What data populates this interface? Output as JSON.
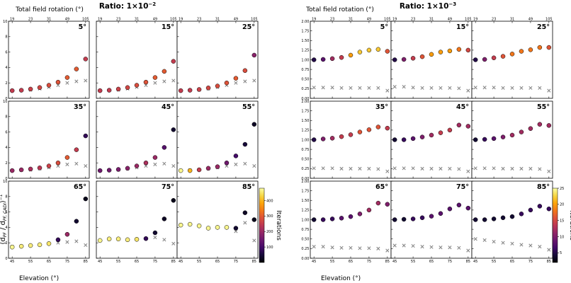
{
  "chart_data": [
    {
      "type": "scatter",
      "title": "Ratio: 1×10⁻²",
      "title_base": "Ratio: 1×10",
      "title_exp": "−2",
      "xlabel": "Elevation (°)",
      "ylabel": "(d_PF / d_PF,CADI)^-1",
      "top_xlabel": "Total field rotation (°)",
      "top_ticks": [
        "19",
        "23",
        "31",
        "49",
        "105"
      ],
      "top_ticks_last_row": [
        "19",
        "23",
        "31",
        "49",
        "105"
      ],
      "ylim": [
        0,
        10
      ],
      "yticks": [
        0,
        2,
        4,
        6,
        8,
        10
      ],
      "xticks": [
        45,
        55,
        65,
        75,
        85
      ],
      "x": [
        45,
        50,
        55,
        60,
        65,
        70,
        75,
        80,
        85
      ],
      "panels": [
        {
          "label": "5°",
          "circle_y": [
            1.0,
            1.05,
            1.2,
            1.4,
            1.7,
            2.1,
            2.7,
            3.8,
            5.1
          ],
          "circle_iter": [
            250,
            250,
            260,
            270,
            280,
            290,
            300,
            300,
            250
          ],
          "cross_y": [
            1.0,
            1.05,
            1.1,
            1.25,
            1.45,
            1.7,
            2.0,
            2.2,
            2.3
          ]
        },
        {
          "label": "15°",
          "circle_y": [
            1.0,
            1.05,
            1.2,
            1.4,
            1.7,
            2.1,
            2.7,
            3.5,
            4.8
          ],
          "circle_iter": [
            250,
            250,
            260,
            270,
            280,
            290,
            300,
            300,
            250
          ],
          "cross_y": [
            1.0,
            1.05,
            1.1,
            1.25,
            1.45,
            1.7,
            2.0,
            2.2,
            2.3
          ]
        },
        {
          "label": "25°",
          "circle_y": [
            1.0,
            1.05,
            1.15,
            1.35,
            1.6,
            2.0,
            2.6,
            3.6,
            5.6
          ],
          "circle_iter": [
            250,
            250,
            260,
            270,
            280,
            290,
            300,
            280,
            180
          ],
          "cross_y": [
            1.0,
            1.05,
            1.1,
            1.25,
            1.45,
            1.7,
            2.0,
            2.2,
            2.3
          ]
        },
        {
          "label": "35°",
          "circle_y": [
            1.0,
            1.1,
            1.2,
            1.35,
            1.6,
            2.0,
            2.7,
            3.7,
            5.5
          ],
          "circle_iter": [
            200,
            200,
            220,
            240,
            260,
            280,
            300,
            250,
            80
          ],
          "cross_y": [
            1.0,
            1.05,
            1.1,
            1.25,
            1.4,
            1.6,
            1.8,
            1.9,
            1.6
          ]
        },
        {
          "label": "45°",
          "circle_y": [
            1.0,
            1.05,
            1.15,
            1.3,
            1.6,
            2.0,
            2.7,
            4.0,
            6.3
          ],
          "circle_iter": [
            150,
            150,
            160,
            180,
            200,
            220,
            200,
            120,
            40
          ],
          "cross_y": [
            1.0,
            1.05,
            1.1,
            1.25,
            1.4,
            1.6,
            1.8,
            1.9,
            1.6
          ]
        },
        {
          "label": "55°",
          "circle_y": [
            1.0,
            1.0,
            1.1,
            1.3,
            1.5,
            2.0,
            2.9,
            4.4,
            7.0
          ],
          "circle_iter": [
            470,
            400,
            250,
            200,
            200,
            150,
            100,
            50,
            30
          ],
          "cross_y": [
            1.0,
            1.05,
            1.1,
            1.25,
            1.4,
            1.6,
            1.8,
            1.9,
            1.6
          ]
        },
        {
          "label": "65°",
          "circle_y": [
            1.45,
            1.55,
            1.65,
            1.75,
            1.9,
            2.4,
            3.1,
            4.8,
            7.7
          ],
          "circle_iter": [
            470,
            460,
            460,
            460,
            450,
            80,
            200,
            40,
            20
          ],
          "cross_y": [
            1.5,
            1.55,
            1.65,
            1.75,
            1.9,
            2.0,
            2.1,
            2.2,
            1.7
          ]
        },
        {
          "label": "75°",
          "circle_y": [
            2.3,
            2.5,
            2.5,
            2.4,
            2.45,
            2.55,
            3.3,
            5.1,
            7.5
          ],
          "circle_iter": [
            470,
            460,
            460,
            460,
            450,
            80,
            40,
            30,
            20
          ],
          "cross_y": [
            2.3,
            2.5,
            2.5,
            2.4,
            2.45,
            2.55,
            2.7,
            2.4,
            1.9
          ]
        },
        {
          "label": "85°",
          "circle_y": [
            4.3,
            4.4,
            4.2,
            3.9,
            4.0,
            4.0,
            3.9,
            5.9,
            5.0
          ],
          "circle_iter": [
            470,
            470,
            470,
            470,
            470,
            470,
            40,
            30,
            20
          ],
          "cross_y": [
            4.3,
            4.4,
            4.2,
            3.9,
            4.0,
            4.0,
            3.5,
            4.6,
            2.3
          ]
        }
      ],
      "colorbar": {
        "label": "Iterations",
        "min": 0,
        "max": 480,
        "ticks": [
          100,
          200,
          300,
          400
        ]
      }
    },
    {
      "type": "scatter",
      "title": "Ratio: 1×10⁻³",
      "title_base": "Ratio: 1×10",
      "title_exp": "−3",
      "xlabel": "Elevation (°)",
      "ylabel": "",
      "top_xlabel": "Total field rotation (°)",
      "top_ticks": [
        "19",
        "23",
        "31",
        "49",
        "105"
      ],
      "ylim": [
        0,
        2
      ],
      "yticks": [
        0,
        0.25,
        0.5,
        0.75,
        1.0,
        1.25,
        1.5,
        1.75,
        2.0
      ],
      "ytick_labels": [
        "0.00",
        "0.25",
        "0.50",
        "0.75",
        "1.00",
        "1.25",
        "1.50",
        "1.75",
        "2.00"
      ],
      "xticks": [
        45,
        55,
        65,
        75,
        85
      ],
      "x": [
        45,
        50,
        55,
        60,
        65,
        70,
        75,
        80,
        85
      ],
      "panels": [
        {
          "label": "5°",
          "circle_y": [
            1.0,
            1.01,
            1.03,
            1.06,
            1.12,
            1.2,
            1.25,
            1.27,
            1.22
          ],
          "circle_iter": [
            5,
            8,
            12,
            14,
            20,
            22,
            22,
            22,
            16
          ],
          "cross_y": [
            0.28,
            0.28,
            0.28,
            0.27,
            0.27,
            0.27,
            0.27,
            0.27,
            0.2
          ]
        },
        {
          "label": "15°",
          "circle_y": [
            1.0,
            1.01,
            1.04,
            1.08,
            1.14,
            1.2,
            1.23,
            1.27,
            1.25
          ],
          "circle_iter": [
            5,
            10,
            14,
            16,
            20,
            20,
            20,
            18,
            15
          ],
          "cross_y": [
            0.3,
            0.3,
            0.28,
            0.27,
            0.27,
            0.27,
            0.27,
            0.26,
            0.2
          ]
        },
        {
          "label": "25°",
          "circle_y": [
            1.0,
            1.01,
            1.05,
            1.09,
            1.15,
            1.22,
            1.26,
            1.32,
            1.32
          ],
          "circle_iter": [
            5,
            10,
            14,
            16,
            18,
            18,
            18,
            18,
            16
          ],
          "cross_y": [
            0.28,
            0.28,
            0.28,
            0.27,
            0.27,
            0.27,
            0.27,
            0.27,
            0.2
          ]
        },
        {
          "label": "35°",
          "circle_y": [
            1.0,
            1.02,
            1.04,
            1.08,
            1.13,
            1.2,
            1.26,
            1.33,
            1.3
          ],
          "circle_iter": [
            5,
            10,
            12,
            14,
            14,
            16,
            16,
            16,
            14
          ],
          "cross_y": [
            0.26,
            0.26,
            0.26,
            0.25,
            0.25,
            0.25,
            0.25,
            0.24,
            0.18
          ]
        },
        {
          "label": "45°",
          "circle_y": [
            1.0,
            1.0,
            1.03,
            1.07,
            1.12,
            1.18,
            1.25,
            1.38,
            1.35
          ],
          "circle_iter": [
            4,
            6,
            8,
            10,
            12,
            14,
            14,
            12,
            12
          ],
          "cross_y": [
            0.26,
            0.26,
            0.26,
            0.25,
            0.25,
            0.25,
            0.25,
            0.24,
            0.18
          ]
        },
        {
          "label": "55°",
          "circle_y": [
            1.0,
            1.01,
            1.03,
            1.07,
            1.12,
            1.2,
            1.29,
            1.4,
            1.37
          ],
          "circle_iter": [
            4,
            6,
            8,
            10,
            12,
            12,
            12,
            12,
            12
          ],
          "cross_y": [
            0.26,
            0.26,
            0.26,
            0.25,
            0.25,
            0.25,
            0.25,
            0.24,
            0.18
          ]
        },
        {
          "label": "65°",
          "circle_y": [
            1.0,
            1.0,
            1.02,
            1.04,
            1.08,
            1.15,
            1.25,
            1.43,
            1.4
          ],
          "circle_iter": [
            4,
            6,
            6,
            8,
            8,
            10,
            12,
            12,
            10
          ],
          "cross_y": [
            0.3,
            0.3,
            0.28,
            0.27,
            0.27,
            0.26,
            0.26,
            0.25,
            0.2
          ]
        },
        {
          "label": "75°",
          "circle_y": [
            1.0,
            1.01,
            1.02,
            1.05,
            1.09,
            1.16,
            1.28,
            1.38,
            1.3
          ],
          "circle_iter": [
            4,
            4,
            6,
            6,
            8,
            8,
            8,
            8,
            8
          ],
          "cross_y": [
            0.33,
            0.33,
            0.32,
            0.3,
            0.29,
            0.28,
            0.28,
            0.27,
            0.2
          ]
        },
        {
          "label": "85°",
          "circle_y": [
            1.0,
            1.0,
            1.02,
            1.05,
            1.08,
            1.15,
            1.25,
            1.35,
            1.28
          ],
          "circle_iter": [
            4,
            4,
            4,
            4,
            4,
            6,
            6,
            6,
            6
          ],
          "cross_y": [
            0.5,
            0.47,
            0.43,
            0.4,
            0.38,
            0.35,
            0.33,
            0.3,
            0.22
          ]
        }
      ],
      "colorbar": {
        "label": "Iterations",
        "min": 2,
        "max": 25,
        "ticks": [
          5,
          10,
          15,
          20,
          25
        ]
      }
    }
  ]
}
